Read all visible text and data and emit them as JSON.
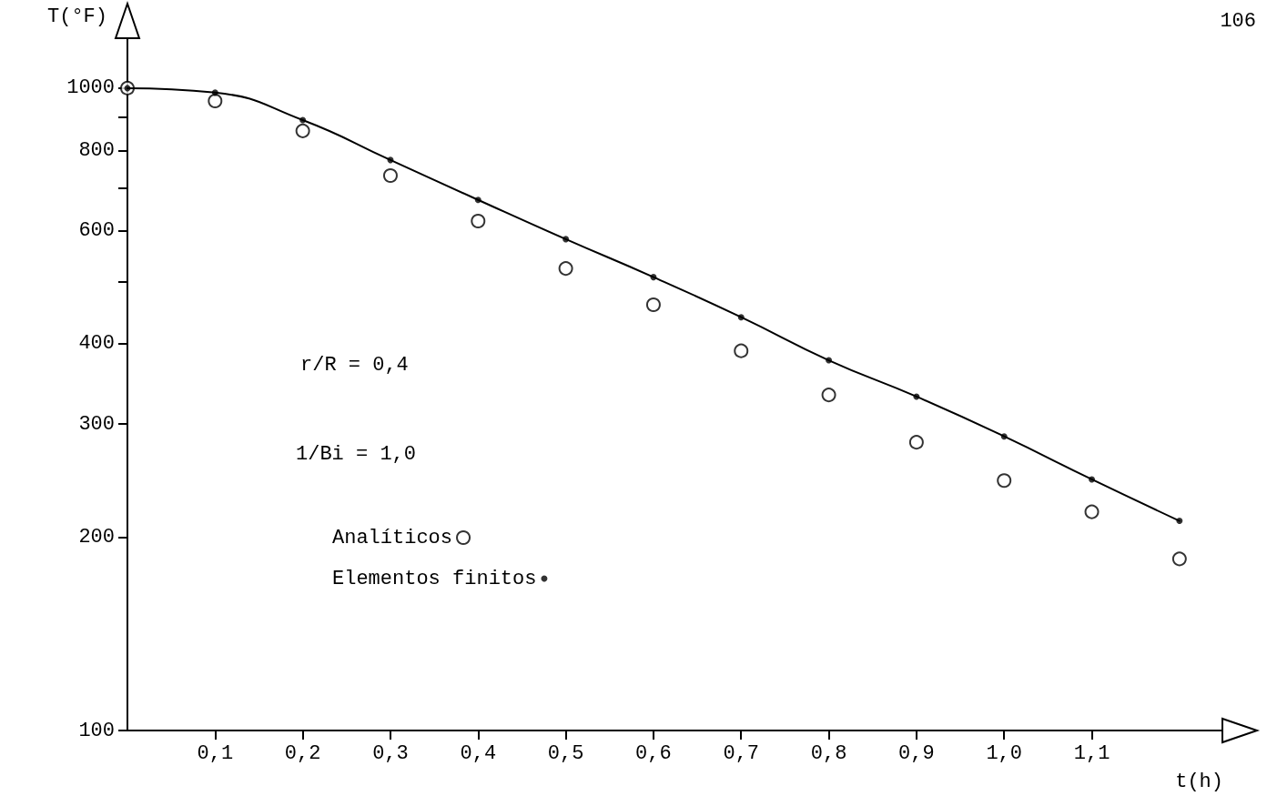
{
  "chart_data": {
    "type": "scatter",
    "xlabel": "t(h)",
    "ylabel": "T(°F)",
    "x": [
      0,
      0.1,
      0.2,
      0.3,
      0.4,
      0.5,
      0.6,
      0.7,
      0.8,
      0.9,
      1.0,
      1.1,
      1.2
    ],
    "series": [
      {
        "name": "Analíticos",
        "type": "scatter",
        "marker": "circle",
        "color": "#000000",
        "values": [
          1000,
          955,
          858,
          731,
          621,
          524,
          460,
          390,
          333,
          281,
          245,
          219,
          185
        ]
      },
      {
        "type": "line",
        "marker": "none",
        "color": "#000000",
        "values": [
          1000,
          984,
          892,
          773,
          670,
          582,
          508,
          440,
          377,
          331,
          287,
          246,
          212
        ]
      },
      {
        "name": "Elementos finitos",
        "marker": "circle",
        "color": "#000000",
        "values": [
          1000,
          984,
          892,
          773,
          670,
          582,
          508,
          440,
          377,
          331,
          287,
          246,
          212
        ]
      }
    ],
    "log": "y",
    "xlim": [
      0,
      1.25
    ],
    "ylim": [
      100,
      1200
    ],
    "xticks": [
      {
        "value": 0.1,
        "label": "0,1"
      },
      {
        "value": 0.2,
        "label": "0,2"
      },
      {
        "value": 0.3,
        "label": "0,3"
      },
      {
        "value": 0.4,
        "label": "0,4"
      },
      {
        "value": 0.5,
        "label": "0,5"
      },
      {
        "value": 0.6,
        "label": "0,6"
      },
      {
        "value": 0.7,
        "label": "0,7"
      },
      {
        "value": 0.8,
        "label": "0,8"
      },
      {
        "value": 0.9,
        "label": "0,9"
      },
      {
        "value": 1.0,
        "label": "1,0"
      },
      {
        "value": 1.1,
        "label": "1,1"
      }
    ],
    "yticks": [
      100,
      200,
      300,
      400,
      {
        "value": 500,
        "label": null
      },
      600,
      {
        "value": 700,
        "label": null
      },
      800,
      {
        "value": 900,
        "label": null
      },
      1000
    ],
    "grid": false,
    "legend": "left",
    "line_style": "solid",
    "annotations": [
      "r/R = 0,4",
      "1/Bi = 1,0",
      "106"
    ]
  }
}
